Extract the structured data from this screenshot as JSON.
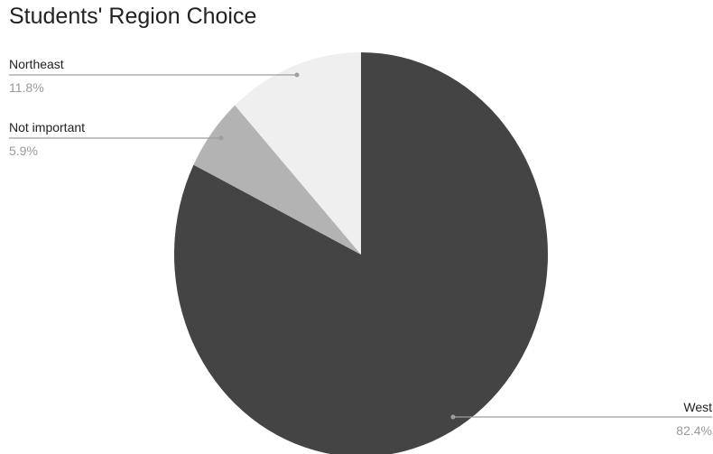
{
  "chart_data": {
    "type": "pie",
    "title": "Students' Region Choice",
    "slices": [
      {
        "label": "West",
        "value": 82.4,
        "value_label": "82.4%",
        "color": "#444444"
      },
      {
        "label": "Not important",
        "value": 5.9,
        "value_label": "5.9%",
        "color": "#b3b3b3"
      },
      {
        "label": "Northeast",
        "value": 11.8,
        "value_label": "11.8%",
        "color": "#efefef"
      }
    ],
    "start_angle": "12 o'clock, clockwise",
    "legend": "none"
  }
}
